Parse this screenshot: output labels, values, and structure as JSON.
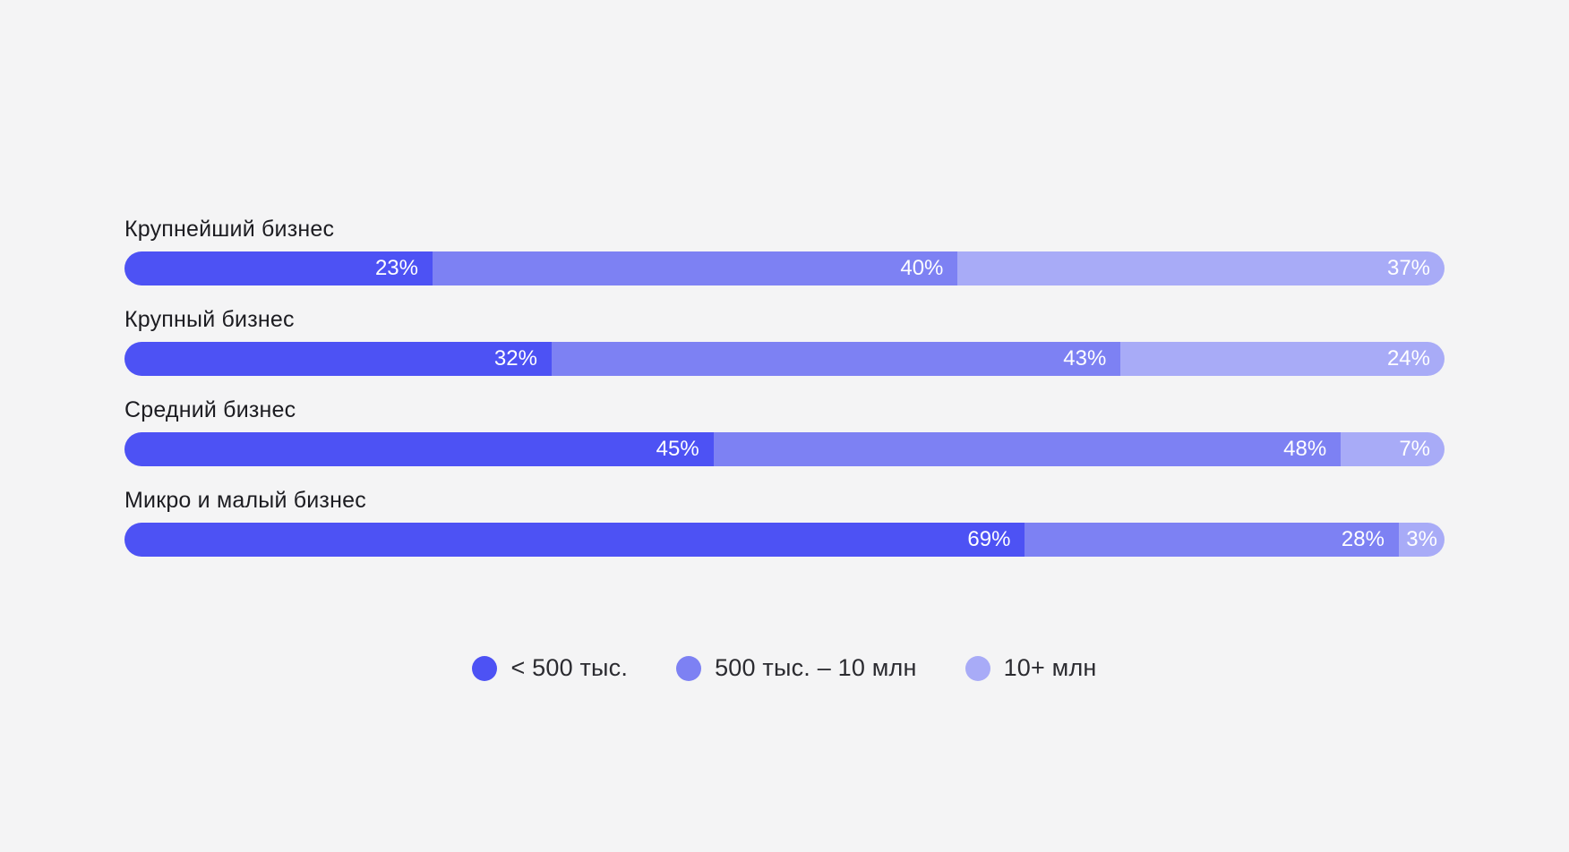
{
  "page": {
    "background_color": "#f4f4f5",
    "text_color": "#1c1c21",
    "value_label_color": "#ffffff"
  },
  "chart_data": {
    "type": "bar",
    "orientation": "horizontal",
    "stacked": true,
    "unit": "%",
    "value_suffix": "%",
    "categories": [
      "Крупнейший бизнес",
      "Крупный бизнес",
      "Средний бизнес",
      "Микро и малый бизнес"
    ],
    "series": [
      {
        "name": "< 500 тыс.",
        "color": "#4d52f4",
        "values": [
          23,
          32,
          45,
          69
        ]
      },
      {
        "name": "500 тыс. – 10 млн",
        "color": "#7d81f3",
        "values": [
          40,
          43,
          48,
          28
        ]
      },
      {
        "name": "10+ млн",
        "color": "#a8abf7",
        "values": [
          37,
          24,
          7,
          3
        ]
      }
    ],
    "value_labels": "inside-end",
    "legend_position": "bottom-center",
    "grid": false,
    "axes": false
  }
}
